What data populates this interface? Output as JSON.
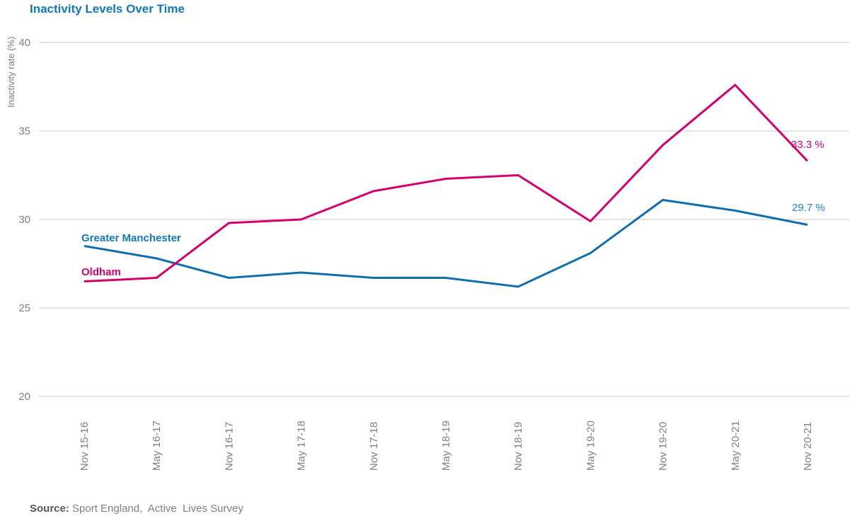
{
  "header": {
    "title": "Inactivity Levels Over Time"
  },
  "chart_data": {
    "type": "line",
    "title": "Inactivity Levels Over Time",
    "xlabel": "",
    "ylabel": "Inactivity rate (%)",
    "ylim": [
      20,
      40
    ],
    "yticks": [
      40,
      35,
      30,
      25,
      20
    ],
    "grid": "horizontal",
    "legend": "inline labels at line start, value labels at line end",
    "categories": [
      "Nov 15-16",
      "May 16-17",
      "Nov 16-17",
      "May 17-18",
      "Nov 17-18",
      "May 18-19",
      "Nov 18-19",
      "May 19-20",
      "Nov 19-20",
      "May 20-21",
      "Nov 20-21"
    ],
    "series": [
      {
        "name": "Greater Manchester",
        "color": "#0F6EAB",
        "values": [
          28.5,
          27.8,
          26.7,
          27.0,
          26.7,
          26.7,
          26.2,
          28.1,
          31.1,
          30.5,
          29.7
        ],
        "end_label": "29.7 %"
      },
      {
        "name": "Oldham",
        "color": "#D4006E",
        "values": [
          26.5,
          26.7,
          29.8,
          30.0,
          31.6,
          32.3,
          32.5,
          29.9,
          34.2,
          37.6,
          33.3
        ],
        "end_label": "33.3 %"
      }
    ]
  },
  "colors": {
    "title_blue": "#1077BC",
    "line_blue": "#0F6EAB",
    "line_pink": "#D4006E",
    "end_label_blue": "#1C86C4",
    "axis_text_gray": "#7f7f7f",
    "gridline_gray": "#C9C9C9",
    "source_label_gray": "#595959"
  },
  "source": {
    "label": "Source:",
    "text": " Sport England,  Active  Lives Survey"
  }
}
